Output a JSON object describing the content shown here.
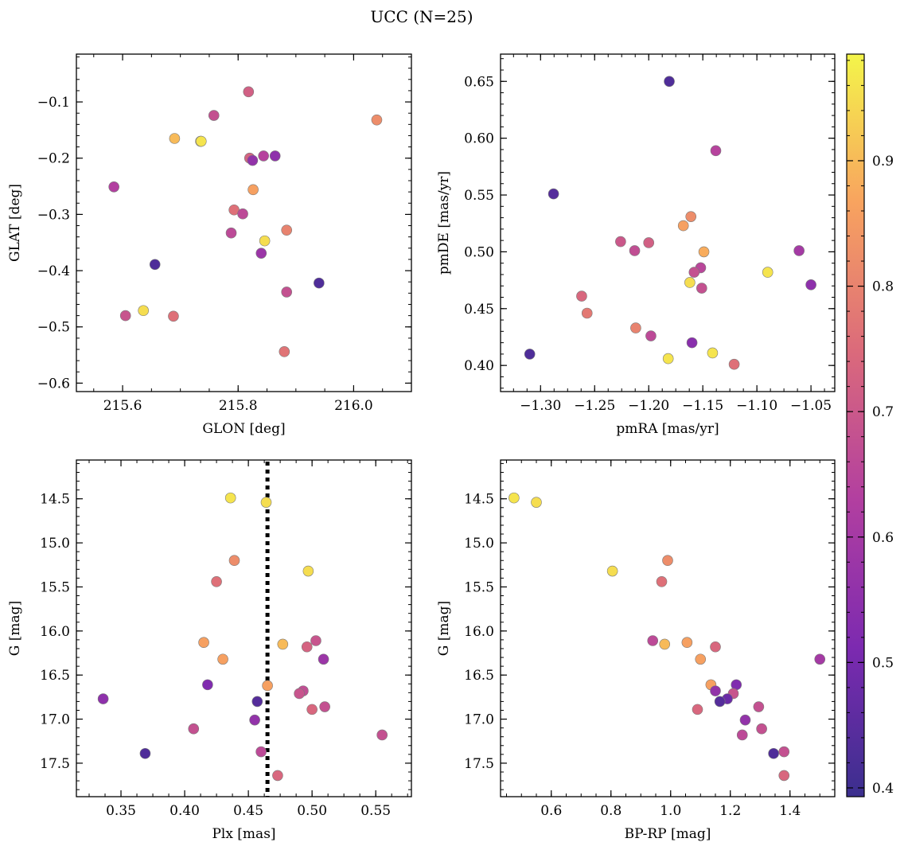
{
  "title": "UCC (N=25)",
  "colorbar": {
    "range": [
      0.393,
      0.985
    ],
    "ticks": [
      0.4,
      0.5,
      0.6,
      0.7,
      0.8,
      0.9
    ],
    "tick_labels": [
      "0.4",
      "0.5",
      "0.6",
      "0.7",
      "0.8",
      "0.9"
    ]
  },
  "chart_data": [
    {
      "type": "scatter",
      "xlabel": "GLON [deg]",
      "ylabel": "GLAT [deg]",
      "xlim": [
        215.52,
        216.1
      ],
      "ylim": [
        -0.615,
        -0.015
      ],
      "x_ticks": [
        215.6,
        215.8,
        216.0
      ],
      "x_tick_labels": [
        "215.6",
        "215.8",
        "216.0"
      ],
      "y_ticks": [
        -0.6,
        -0.5,
        -0.4,
        -0.3,
        -0.2,
        -0.1
      ],
      "y_tick_labels": [
        "−0.6",
        "−0.5",
        "−0.4",
        "−0.3",
        "−0.2",
        "−0.1"
      ],
      "x": [
        215.818,
        215.758,
        216.04,
        215.69,
        215.735,
        215.736,
        215.864,
        215.844,
        215.82,
        215.825,
        215.585,
        215.826,
        215.793,
        215.808,
        215.788,
        215.846,
        215.884,
        215.84,
        215.656,
        215.94,
        215.884,
        215.605,
        215.636,
        215.688,
        215.88
      ],
      "y": [
        -0.082,
        -0.124,
        -0.132,
        -0.165,
        -0.17,
        -0.17,
        -0.196,
        -0.196,
        -0.2,
        -0.204,
        -0.251,
        -0.256,
        -0.292,
        -0.299,
        -0.333,
        -0.347,
        -0.328,
        -0.369,
        -0.389,
        -0.422,
        -0.438,
        -0.48,
        -0.471,
        -0.481,
        -0.544
      ],
      "c": [
        0.72,
        0.68,
        0.82,
        0.9,
        0.94,
        0.96,
        0.55,
        0.64,
        0.73,
        0.56,
        0.63,
        0.86,
        0.76,
        0.66,
        0.66,
        0.95,
        0.8,
        0.58,
        0.43,
        0.43,
        0.68,
        0.69,
        0.95,
        0.76,
        0.77
      ]
    },
    {
      "type": "scatter",
      "xlabel": "pmRA [mas/yr]",
      "ylabel": "pmDE [mas/yr]",
      "xlim": [
        -1.337,
        -1.028
      ],
      "ylim": [
        0.377,
        0.674
      ],
      "x_ticks": [
        -1.3,
        -1.25,
        -1.2,
        -1.15,
        -1.1,
        -1.05
      ],
      "x_tick_labels": [
        "−1.30",
        "−1.25",
        "−1.20",
        "−1.15",
        "−1.10",
        "−1.05"
      ],
      "y_ticks": [
        0.4,
        0.45,
        0.5,
        0.55,
        0.6,
        0.65
      ],
      "y_tick_labels": [
        "0.40",
        "0.45",
        "0.50",
        "0.55",
        "0.60",
        "0.65"
      ],
      "x": [
        -1.181,
        -1.138,
        -1.288,
        -1.161,
        -1.168,
        -1.226,
        -1.2,
        -1.213,
        -1.149,
        -1.152,
        -1.158,
        -1.162,
        -1.151,
        -1.061,
        -1.09,
        -1.05,
        -1.262,
        -1.257,
        -1.212,
        -1.198,
        -1.16,
        -1.182,
        -1.141,
        -1.121,
        -1.31
      ],
      "y": [
        0.65,
        0.589,
        0.551,
        0.531,
        0.523,
        0.509,
        0.508,
        0.501,
        0.5,
        0.486,
        0.482,
        0.473,
        0.468,
        0.501,
        0.482,
        0.471,
        0.461,
        0.446,
        0.433,
        0.426,
        0.42,
        0.406,
        0.411,
        0.401,
        0.41
      ],
      "c": [
        0.43,
        0.64,
        0.44,
        0.82,
        0.86,
        0.7,
        0.72,
        0.67,
        0.88,
        0.65,
        0.68,
        0.95,
        0.68,
        0.6,
        0.96,
        0.55,
        0.74,
        0.78,
        0.8,
        0.66,
        0.54,
        0.96,
        0.96,
        0.76,
        0.43
      ]
    },
    {
      "type": "scatter",
      "xlabel": "Plx [mas]",
      "ylabel": "G [mag]",
      "xlim": [
        0.315,
        0.578
      ],
      "ylim": [
        17.88,
        14.06
      ],
      "y_inverted": true,
      "x_ticks": [
        0.35,
        0.4,
        0.45,
        0.5,
        0.55
      ],
      "x_tick_labels": [
        "0.35",
        "0.40",
        "0.45",
        "0.50",
        "0.55"
      ],
      "y_ticks": [
        14.5,
        15.0,
        15.5,
        16.0,
        16.5,
        17.0,
        17.5
      ],
      "y_tick_labels": [
        "14.5",
        "15.0",
        "15.5",
        "16.0",
        "16.5",
        "17.0",
        "17.5"
      ],
      "reference_line": {
        "x": 0.465,
        "style": "dotted"
      },
      "x": [
        0.436,
        0.464,
        0.439,
        0.497,
        0.425,
        0.415,
        0.477,
        0.503,
        0.496,
        0.43,
        0.509,
        0.465,
        0.418,
        0.493,
        0.49,
        0.336,
        0.457,
        0.51,
        0.5,
        0.407,
        0.455,
        0.369,
        0.46,
        0.555,
        0.473
      ],
      "y": [
        14.49,
        14.54,
        15.2,
        15.32,
        15.44,
        16.13,
        16.15,
        16.11,
        16.18,
        16.32,
        16.32,
        16.62,
        16.61,
        16.68,
        16.71,
        16.77,
        16.8,
        16.86,
        16.89,
        17.11,
        17.01,
        17.39,
        17.37,
        17.18,
        17.64
      ],
      "c": [
        0.96,
        0.95,
        0.82,
        0.95,
        0.76,
        0.86,
        0.9,
        0.69,
        0.73,
        0.86,
        0.58,
        0.86,
        0.52,
        0.67,
        0.69,
        0.55,
        0.44,
        0.68,
        0.74,
        0.68,
        0.56,
        0.43,
        0.66,
        0.68,
        0.74
      ]
    },
    {
      "type": "scatter",
      "xlabel": "BP-RP [mag]",
      "ylabel": "G [mag]",
      "xlim": [
        0.43,
        1.55
      ],
      "ylim": [
        17.88,
        14.06
      ],
      "y_inverted": true,
      "x_ticks": [
        0.6,
        0.8,
        1.0,
        1.2,
        1.4
      ],
      "x_tick_labels": [
        "0.6",
        "0.8",
        "1.0",
        "1.2",
        "1.4"
      ],
      "y_ticks": [
        14.5,
        15.0,
        15.5,
        16.0,
        16.5,
        17.0,
        17.5
      ],
      "y_tick_labels": [
        "14.5",
        "15.0",
        "15.5",
        "16.0",
        "16.5",
        "17.0",
        "17.5"
      ],
      "x": [
        0.475,
        0.55,
        0.805,
        0.99,
        0.97,
        0.94,
        0.98,
        1.055,
        1.15,
        1.1,
        1.5,
        1.135,
        1.22,
        1.15,
        1.21,
        1.19,
        1.165,
        1.295,
        1.09,
        1.305,
        1.25,
        1.345,
        1.38,
        1.24,
        1.38
      ],
      "y": [
        14.49,
        14.54,
        15.32,
        15.2,
        15.44,
        16.11,
        16.15,
        16.13,
        16.18,
        16.32,
        16.32,
        16.61,
        16.61,
        16.68,
        16.71,
        16.77,
        16.8,
        16.86,
        16.89,
        17.11,
        17.01,
        17.39,
        17.37,
        17.18,
        17.64
      ],
      "c": [
        0.96,
        0.95,
        0.95,
        0.82,
        0.76,
        0.66,
        0.9,
        0.86,
        0.74,
        0.86,
        0.6,
        0.86,
        0.52,
        0.56,
        0.69,
        0.48,
        0.44,
        0.68,
        0.74,
        0.68,
        0.56,
        0.43,
        0.68,
        0.66,
        0.74
      ]
    }
  ]
}
